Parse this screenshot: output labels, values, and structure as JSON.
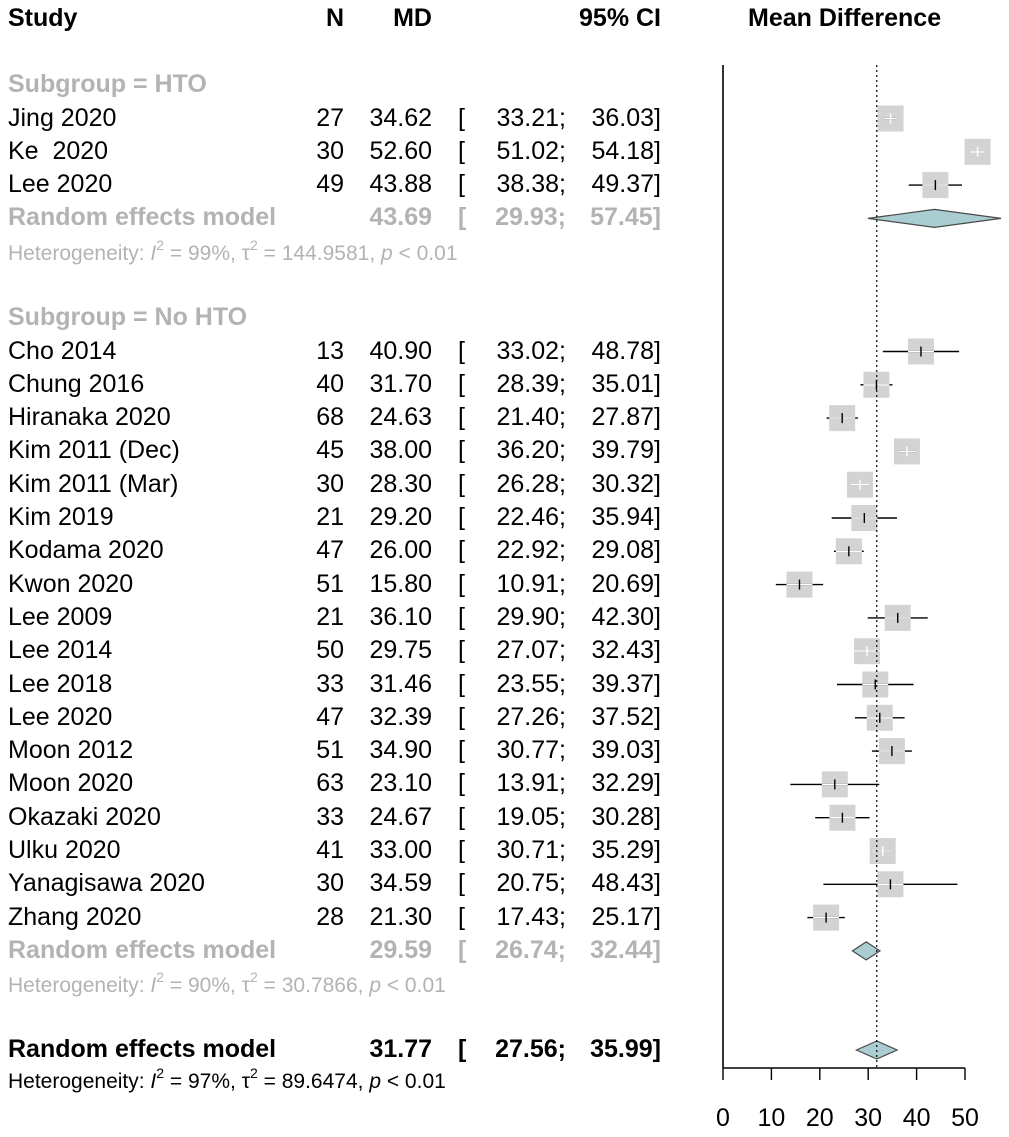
{
  "chart_data": {
    "type": "forest",
    "header": {
      "study": "Study",
      "n": "N",
      "md": "MD",
      "ci": "95% CI",
      "plot_title": "Mean Difference"
    },
    "xlim": [
      0,
      50
    ],
    "xticks": [
      0,
      10,
      20,
      30,
      40,
      50
    ],
    "reference_line": 31.77,
    "groups": [
      {
        "label": "Subgroup = HTO",
        "studies": [
          {
            "name": "Jing 2020",
            "n": "27",
            "md": 34.62,
            "md_text": "34.62",
            "lo": 33.21,
            "hi": 36.03,
            "lo_text": "33.21",
            "hi_text": "36.03"
          },
          {
            "name": "Ke  2020",
            "n": "30",
            "md": 52.6,
            "md_text": "52.60",
            "lo": 51.02,
            "hi": 54.18,
            "lo_text": "51.02",
            "hi_text": "54.18"
          },
          {
            "name": "Lee 2020",
            "n": "49",
            "md": 43.88,
            "md_text": "43.88",
            "lo": 38.38,
            "hi": 49.37,
            "lo_text": "38.38",
            "hi_text": "49.37"
          }
        ],
        "pooled": {
          "label": "Random effects model",
          "md": 43.69,
          "md_text": "43.69",
          "lo": 29.93,
          "hi": 57.45,
          "lo_text": "29.93",
          "hi_text": "57.45"
        },
        "heterogeneity": {
          "prefix": "Heterogeneity: ",
          "i2_symbol": "I",
          "sup": "2",
          "i2_value": " = 99%, ",
          "tau_symbol": "τ",
          "tau_value": " = 144.9581, ",
          "p_symbol": "p",
          "p_value": " < 0.01"
        }
      },
      {
        "label": "Subgroup = No HTO",
        "studies": [
          {
            "name": "Cho 2014",
            "n": "13",
            "md": 40.9,
            "md_text": "40.90",
            "lo": 33.02,
            "hi": 48.78,
            "lo_text": "33.02",
            "hi_text": "48.78"
          },
          {
            "name": "Chung 2016",
            "n": "40",
            "md": 31.7,
            "md_text": "31.70",
            "lo": 28.39,
            "hi": 35.01,
            "lo_text": "28.39",
            "hi_text": "35.01"
          },
          {
            "name": "Hiranaka 2020",
            "n": "68",
            "md": 24.63,
            "md_text": "24.63",
            "lo": 21.4,
            "hi": 27.87,
            "lo_text": "21.40",
            "hi_text": "27.87"
          },
          {
            "name": "Kim 2011 (Dec)",
            "n": "45",
            "md": 38.0,
            "md_text": "38.00",
            "lo": 36.2,
            "hi": 39.79,
            "lo_text": "36.20",
            "hi_text": "39.79"
          },
          {
            "name": "Kim 2011 (Mar)",
            "n": "30",
            "md": 28.3,
            "md_text": "28.30",
            "lo": 26.28,
            "hi": 30.32,
            "lo_text": "26.28",
            "hi_text": "30.32"
          },
          {
            "name": "Kim 2019",
            "n": "21",
            "md": 29.2,
            "md_text": "29.20",
            "lo": 22.46,
            "hi": 35.94,
            "lo_text": "22.46",
            "hi_text": "35.94"
          },
          {
            "name": "Kodama 2020",
            "n": "47",
            "md": 26.0,
            "md_text": "26.00",
            "lo": 22.92,
            "hi": 29.08,
            "lo_text": "22.92",
            "hi_text": "29.08"
          },
          {
            "name": "Kwon 2020",
            "n": "51",
            "md": 15.8,
            "md_text": "15.80",
            "lo": 10.91,
            "hi": 20.69,
            "lo_text": "10.91",
            "hi_text": "20.69"
          },
          {
            "name": "Lee 2009",
            "n": "21",
            "md": 36.1,
            "md_text": "36.10",
            "lo": 29.9,
            "hi": 42.3,
            "lo_text": "29.90",
            "hi_text": "42.30"
          },
          {
            "name": "Lee 2014",
            "n": "50",
            "md": 29.75,
            "md_text": "29.75",
            "lo": 27.07,
            "hi": 32.43,
            "lo_text": "27.07",
            "hi_text": "32.43"
          },
          {
            "name": "Lee 2018",
            "n": "33",
            "md": 31.46,
            "md_text": "31.46",
            "lo": 23.55,
            "hi": 39.37,
            "lo_text": "23.55",
            "hi_text": "39.37"
          },
          {
            "name": "Lee 2020",
            "n": "47",
            "md": 32.39,
            "md_text": "32.39",
            "lo": 27.26,
            "hi": 37.52,
            "lo_text": "27.26",
            "hi_text": "37.52"
          },
          {
            "name": "Moon 2012",
            "n": "51",
            "md": 34.9,
            "md_text": "34.90",
            "lo": 30.77,
            "hi": 39.03,
            "lo_text": "30.77",
            "hi_text": "39.03"
          },
          {
            "name": "Moon 2020",
            "n": "63",
            "md": 23.1,
            "md_text": "23.10",
            "lo": 13.91,
            "hi": 32.29,
            "lo_text": "13.91",
            "hi_text": "32.29"
          },
          {
            "name": "Okazaki 2020",
            "n": "33",
            "md": 24.67,
            "md_text": "24.67",
            "lo": 19.05,
            "hi": 30.28,
            "lo_text": "19.05",
            "hi_text": "30.28"
          },
          {
            "name": "Ulku 2020",
            "n": "41",
            "md": 33.0,
            "md_text": "33.00",
            "lo": 30.71,
            "hi": 35.29,
            "lo_text": "30.71",
            "hi_text": "35.29"
          },
          {
            "name": "Yanagisawa 2020",
            "n": "30",
            "md": 34.59,
            "md_text": "34.59",
            "lo": 20.75,
            "hi": 48.43,
            "lo_text": "20.75",
            "hi_text": "48.43"
          },
          {
            "name": "Zhang 2020",
            "n": "28",
            "md": 21.3,
            "md_text": "21.30",
            "lo": 17.43,
            "hi": 25.17,
            "lo_text": "17.43",
            "hi_text": "25.17"
          }
        ],
        "pooled": {
          "label": "Random effects model",
          "md": 29.59,
          "md_text": "29.59",
          "lo": 26.74,
          "hi": 32.44,
          "lo_text": "26.74",
          "hi_text": "32.44"
        },
        "heterogeneity": {
          "prefix": "Heterogeneity: ",
          "i2_symbol": "I",
          "sup": "2",
          "i2_value": " = 90%, ",
          "tau_symbol": "τ",
          "tau_value": " = 30.7866, ",
          "p_symbol": "p",
          "p_value": " < 0.01"
        }
      }
    ],
    "overall": {
      "pooled": {
        "label": "Random effects model",
        "md": 31.77,
        "md_text": "31.77",
        "lo": 27.56,
        "hi": 35.99,
        "lo_text": "27.56",
        "hi_text": "35.99"
      },
      "heterogeneity": {
        "prefix": "Heterogeneity: ",
        "i2_symbol": "I",
        "sup": "2",
        "i2_value": " = 97%, ",
        "tau_symbol": "τ",
        "tau_value": " = 89.6474, ",
        "p_symbol": "p",
        "p_value": " < 0.01"
      }
    },
    "colors": {
      "square": "#d3d3d3",
      "diamond_fill": "#a9cdd1",
      "diamond_stroke": "#4a4a4a",
      "subgroup_text": "#b3b3b3",
      "ci_line": "#000000",
      "ci_line_inside": "#ffffff"
    }
  }
}
